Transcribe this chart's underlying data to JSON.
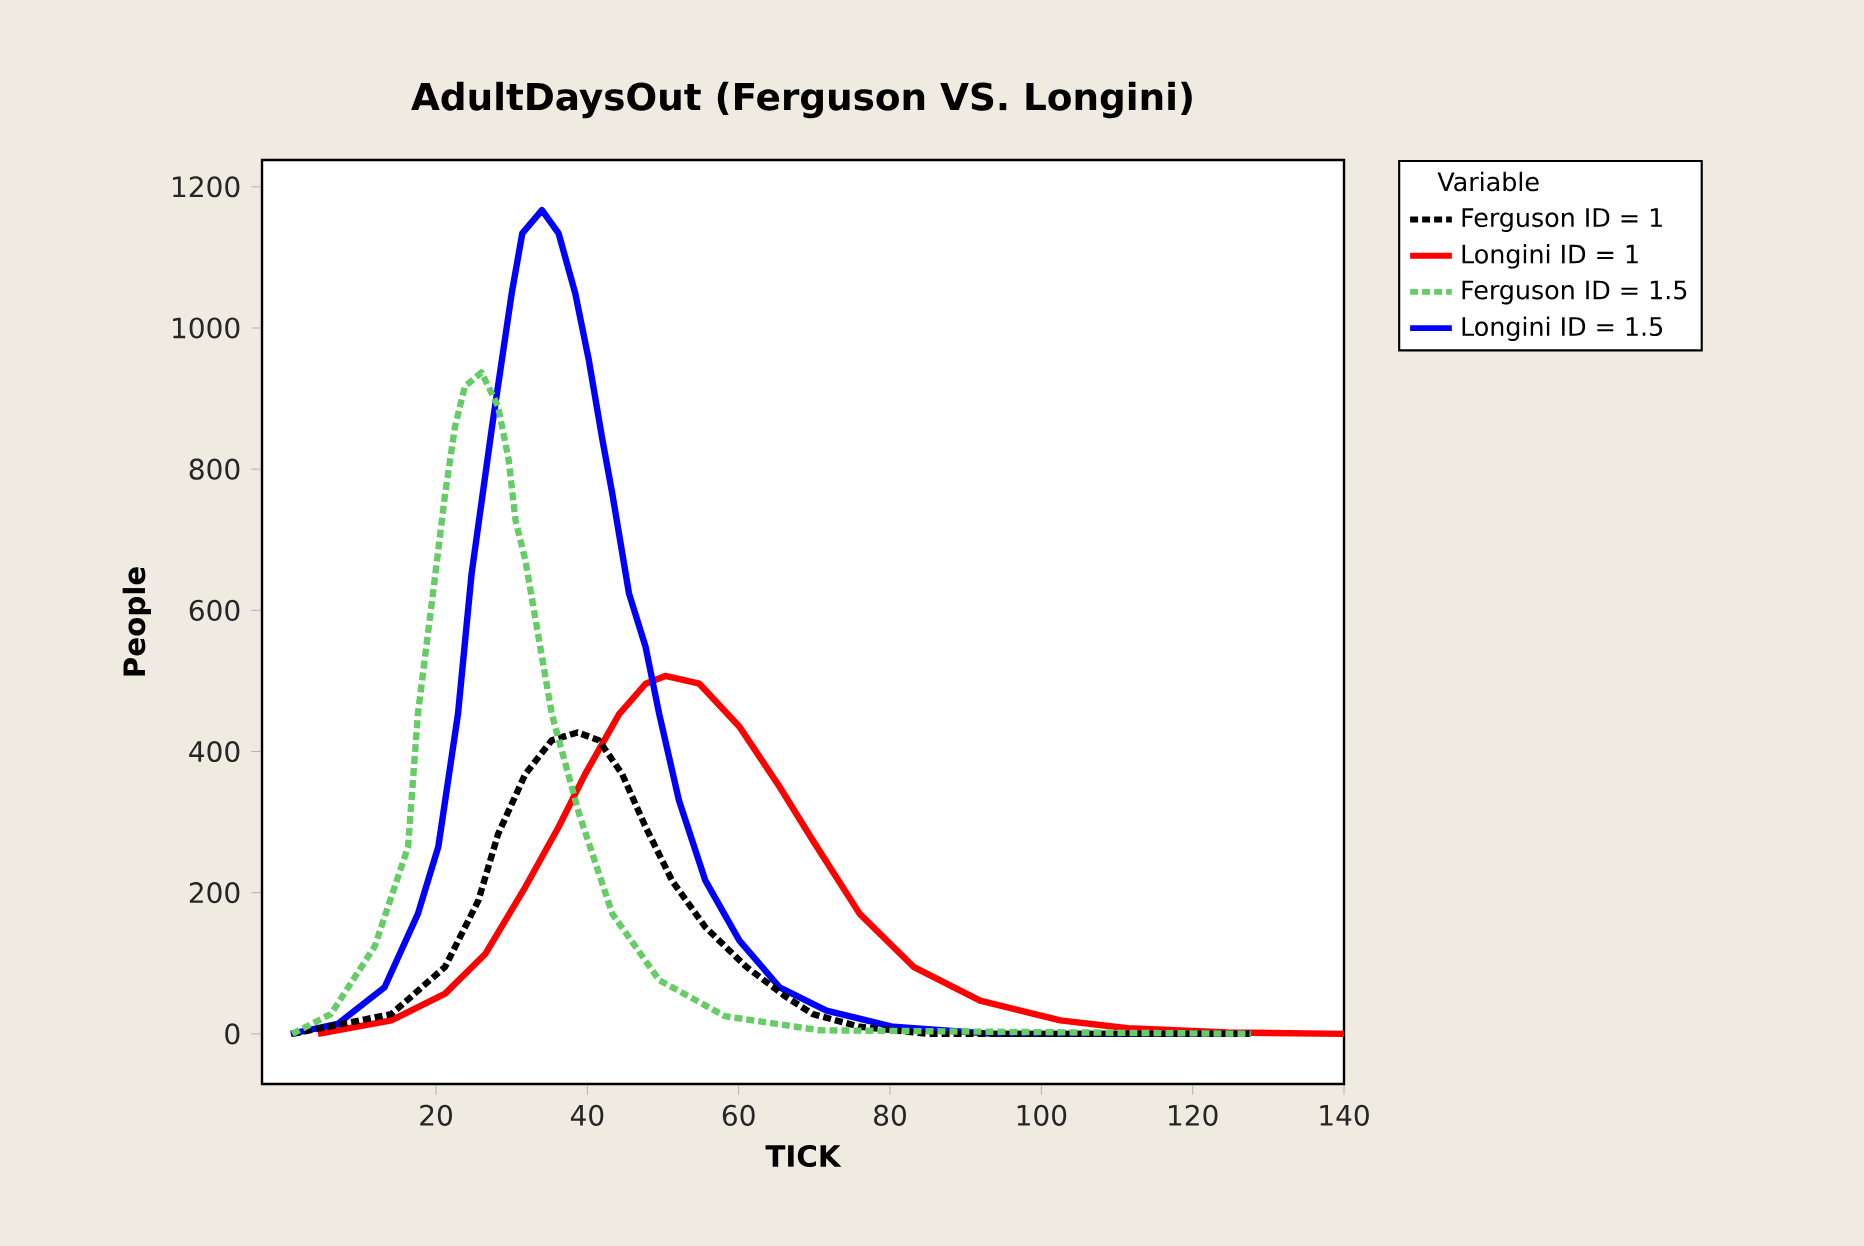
{
  "chart_data": {
    "type": "line",
    "title": "AdultDaysOut (Ferguson VS. Longini)",
    "xlabel": "TICK",
    "ylabel": "People",
    "legend_title": "Variable",
    "legend": "top right",
    "xlim": [
      -3,
      140
    ],
    "ylim": [
      -71,
      1238
    ],
    "xticks": [
      20,
      40,
      60,
      80,
      100,
      120,
      140
    ],
    "yticks": [
      0,
      200,
      400,
      600,
      800,
      1000,
      1200
    ],
    "series": [
      {
        "name": "Ferguson ID = 1",
        "color": "#000000",
        "line_style": "dashed",
        "x": [
          1,
          14.1,
          21.2,
          25.6,
          28.2,
          31.8,
          35.3,
          38.7,
          41.5,
          44.6,
          47.7,
          51.2,
          55.6,
          61,
          66.3,
          69.8,
          76,
          85,
          127.7
        ],
        "values": [
          0,
          28,
          95,
          189,
          283,
          368,
          416,
          427,
          416,
          368,
          293,
          217,
          151,
          95,
          52,
          28,
          10,
          0,
          0
        ]
      },
      {
        "name": "Longini ID = 1",
        "color": "#ff0000",
        "line_style": "solid",
        "x": [
          4.4,
          14.1,
          21.2,
          26.5,
          31.8,
          36.2,
          39.7,
          44.2,
          47.7,
          50.3,
          54.8,
          60.1,
          65.4,
          69.8,
          76,
          83.1,
          91.9,
          102.5,
          111.4,
          124.6,
          140
        ],
        "values": [
          0,
          19,
          57,
          113,
          208,
          293,
          368,
          453,
          496,
          507,
          496,
          435,
          350,
          274,
          170,
          95,
          47,
          19,
          8,
          2,
          0
        ]
      },
      {
        "name": "Ferguson ID = 1.5",
        "color": "#66cc66",
        "line_style": "dashed",
        "x": [
          1,
          6.1,
          11.9,
          16.3,
          17.6,
          19.8,
          21.2,
          22.5,
          23.8,
          26,
          28.2,
          29.6,
          30.5,
          31.8,
          35.3,
          38.9,
          43.3,
          49.5,
          58.2,
          70.7,
          127.7
        ],
        "values": [
          0,
          28,
          124,
          265,
          453,
          642,
          765,
          860,
          917,
          937,
          889,
          813,
          728,
          671,
          453,
          312,
          170,
          76,
          25,
          5,
          0
        ]
      },
      {
        "name": "Longini  ID = 1.5",
        "color": "#0000ff",
        "line_style": "solid",
        "x": [
          0.8,
          7,
          13.2,
          17.6,
          20.3,
          22.9,
          24.7,
          27.4,
          30,
          31.4,
          34,
          36.2,
          38.4,
          40.2,
          42,
          43.3,
          45.5,
          47.7,
          49.5,
          52.1,
          55.6,
          60.1,
          65.4,
          71.6,
          80.4,
          93.7,
          127.7
        ],
        "values": [
          0,
          14,
          66,
          170,
          265,
          453,
          652,
          860,
          1049,
          1134,
          1167,
          1134,
          1049,
          954,
          841,
          765,
          624,
          548,
          453,
          331,
          217,
          132,
          66,
          33,
          10,
          0,
          0
        ]
      }
    ]
  }
}
